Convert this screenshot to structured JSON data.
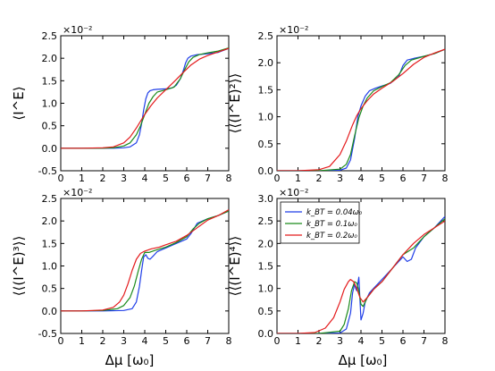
{
  "figure": {
    "xlabel": "Δμ  [ω₀]"
  },
  "chart_data": [
    {
      "type": "line",
      "ylabel": "⟨I^E⟩",
      "multiplier": "×10⁻²",
      "xlim": [
        0,
        8
      ],
      "ylim": [
        -0.5,
        2.5
      ],
      "xticks": [
        "0",
        "1",
        "2",
        "3",
        "4",
        "5",
        "6",
        "7",
        "8"
      ],
      "yticks": [
        "-0.5",
        "0.0",
        "0.5",
        "1.0",
        "1.5",
        "2.0",
        "2.5"
      ],
      "series": [
        {
          "color": "#1f3ee8",
          "x": [
            0,
            1,
            2,
            2.5,
            3,
            3.3,
            3.6,
            3.75,
            3.85,
            3.95,
            4.05,
            4.15,
            4.25,
            4.4,
            4.6,
            5.0,
            5.3,
            5.5,
            5.7,
            5.85,
            5.95,
            6.05,
            6.2,
            6.5,
            7,
            7.5,
            8
          ],
          "y": [
            0,
            0,
            0,
            0,
            0.01,
            0.03,
            0.12,
            0.3,
            0.55,
            0.85,
            1.1,
            1.23,
            1.28,
            1.3,
            1.31,
            1.32,
            1.34,
            1.4,
            1.55,
            1.75,
            1.9,
            2.0,
            2.05,
            2.08,
            2.1,
            2.13,
            2.22
          ]
        },
        {
          "color": "#1a8a1a",
          "x": [
            0,
            1,
            2,
            2.5,
            3,
            3.3,
            3.6,
            3.8,
            4.0,
            4.2,
            4.4,
            4.6,
            5.0,
            5.4,
            5.7,
            5.9,
            6.1,
            6.3,
            6.6,
            7,
            7.5,
            8
          ],
          "y": [
            0,
            0,
            0,
            0.01,
            0.05,
            0.12,
            0.3,
            0.5,
            0.75,
            1.0,
            1.15,
            1.25,
            1.3,
            1.36,
            1.55,
            1.75,
            1.92,
            2.02,
            2.08,
            2.12,
            2.16,
            2.23
          ]
        },
        {
          "color": "#e41a1c",
          "x": [
            0,
            1,
            2,
            2.5,
            3,
            3.3,
            3.6,
            3.8,
            4.0,
            4.3,
            4.6,
            5.0,
            5.4,
            5.8,
            6.2,
            6.6,
            7,
            7.5,
            8
          ],
          "y": [
            0,
            0,
            0.01,
            0.03,
            0.12,
            0.25,
            0.45,
            0.6,
            0.75,
            0.95,
            1.12,
            1.3,
            1.48,
            1.67,
            1.85,
            1.98,
            2.06,
            2.14,
            2.22
          ]
        }
      ]
    },
    {
      "type": "line",
      "ylabel": "⟨⟨(I^E)²⟩⟩",
      "multiplier": "×10⁻²",
      "xlim": [
        0,
        8
      ],
      "ylim": [
        0,
        2.5
      ],
      "xticks": [
        "0",
        "1",
        "2",
        "3",
        "4",
        "5",
        "6",
        "7",
        "8"
      ],
      "yticks": [
        "0.0",
        "0.5",
        "1.0",
        "1.5",
        "2.0",
        "2.5"
      ],
      "series": [
        {
          "color": "#1f3ee8",
          "x": [
            0,
            1,
            2,
            3,
            3.3,
            3.5,
            3.7,
            3.85,
            4.0,
            4.2,
            4.4,
            4.7,
            5.0,
            5.4,
            5.8,
            6.0,
            6.2,
            6.5,
            7,
            7.5,
            8
          ],
          "y": [
            0,
            0,
            0,
            0.01,
            0.05,
            0.2,
            0.6,
            1.0,
            1.2,
            1.38,
            1.48,
            1.53,
            1.57,
            1.62,
            1.75,
            1.95,
            2.05,
            2.08,
            2.12,
            2.17,
            2.25
          ]
        },
        {
          "color": "#1a8a1a",
          "x": [
            0,
            1,
            2,
            3,
            3.3,
            3.5,
            3.7,
            3.9,
            4.1,
            4.3,
            4.6,
            5.0,
            5.4,
            5.8,
            6.1,
            6.4,
            7,
            7.5,
            8
          ],
          "y": [
            0,
            0,
            0,
            0.03,
            0.12,
            0.3,
            0.65,
            0.98,
            1.2,
            1.35,
            1.48,
            1.56,
            1.63,
            1.78,
            1.95,
            2.05,
            2.12,
            2.17,
            2.25
          ]
        },
        {
          "color": "#e41a1c",
          "x": [
            0,
            1,
            2,
            2.5,
            3,
            3.3,
            3.6,
            3.8,
            4.0,
            4.3,
            4.6,
            5.0,
            5.5,
            6.0,
            6.5,
            7,
            7.5,
            8
          ],
          "y": [
            0,
            0,
            0.02,
            0.08,
            0.3,
            0.55,
            0.85,
            1.02,
            1.15,
            1.3,
            1.42,
            1.53,
            1.65,
            1.8,
            1.97,
            2.1,
            2.18,
            2.25
          ]
        }
      ]
    },
    {
      "type": "line",
      "ylabel": "⟨⟨(I^E)³⟩⟩",
      "multiplier": "×10⁻²",
      "xlim": [
        0,
        8
      ],
      "ylim": [
        -0.5,
        2.5
      ],
      "xticks": [
        "0",
        "1",
        "2",
        "3",
        "4",
        "5",
        "6",
        "7",
        "8"
      ],
      "yticks": [
        "-0.5",
        "0.0",
        "0.5",
        "1.0",
        "1.5",
        "2.0",
        "2.5"
      ],
      "series": [
        {
          "color": "#1f3ee8",
          "x": [
            0,
            1,
            2,
            3,
            3.4,
            3.6,
            3.75,
            3.85,
            3.95,
            4.05,
            4.15,
            4.25,
            4.4,
            4.6,
            5.0,
            5.5,
            6.0,
            6.2,
            6.5,
            7,
            7.5,
            8
          ],
          "y": [
            0,
            0,
            0,
            0.01,
            0.05,
            0.2,
            0.55,
            0.9,
            1.2,
            1.25,
            1.17,
            1.15,
            1.22,
            1.32,
            1.4,
            1.5,
            1.6,
            1.72,
            1.95,
            2.05,
            2.12,
            2.22
          ]
        },
        {
          "color": "#1a8a1a",
          "x": [
            0,
            1,
            2,
            2.7,
            3,
            3.3,
            3.5,
            3.7,
            3.85,
            4.0,
            4.2,
            4.5,
            5.0,
            5.5,
            6.0,
            6.3,
            6.6,
            7,
            7.5,
            8
          ],
          "y": [
            0,
            0,
            0.01,
            0.05,
            0.12,
            0.3,
            0.55,
            0.9,
            1.15,
            1.3,
            1.3,
            1.35,
            1.42,
            1.52,
            1.65,
            1.82,
            1.95,
            2.05,
            2.12,
            2.22
          ]
        },
        {
          "color": "#e41a1c",
          "x": [
            0,
            1,
            2,
            2.5,
            2.8,
            3.0,
            3.2,
            3.4,
            3.6,
            3.8,
            4.0,
            4.3,
            4.7,
            5.0,
            5.5,
            6.0,
            6.5,
            7,
            7.5,
            8
          ],
          "y": [
            0,
            0,
            0.02,
            0.08,
            0.2,
            0.35,
            0.6,
            0.9,
            1.15,
            1.28,
            1.33,
            1.38,
            1.42,
            1.47,
            1.55,
            1.68,
            1.85,
            2.02,
            2.12,
            2.25
          ]
        }
      ]
    },
    {
      "type": "line",
      "ylabel": "⟨⟨(I^E)⁴⟩⟩",
      "multiplier": "×10⁻²",
      "xlim": [
        0,
        8
      ],
      "ylim": [
        0,
        3.0
      ],
      "xticks": [
        "0",
        "1",
        "2",
        "3",
        "4",
        "5",
        "6",
        "7",
        "8"
      ],
      "yticks": [
        "0.0",
        "0.5",
        "1.0",
        "1.5",
        "2.0",
        "2.5",
        "3.0"
      ],
      "legend": {
        "placement": "top-left",
        "entries": [
          "k_BT = 0.04ω₀",
          "k_BT = 0.1ω₀",
          "k_BT = 0.2ω₀"
        ]
      },
      "series": [
        {
          "color": "#1f3ee8",
          "x": [
            0,
            1,
            2,
            3,
            3.3,
            3.5,
            3.6,
            3.7,
            3.75,
            3.8,
            3.85,
            3.9,
            4.0,
            4.1,
            4.2,
            4.4,
            4.7,
            5.0,
            5.5,
            6.0,
            6.2,
            6.4,
            6.6,
            7,
            7.5,
            8
          ],
          "y": [
            0,
            0,
            0,
            0.01,
            0.1,
            0.45,
            0.9,
            1.1,
            1.0,
            0.95,
            1.1,
            1.25,
            0.3,
            0.45,
            0.7,
            0.9,
            1.05,
            1.2,
            1.45,
            1.7,
            1.6,
            1.65,
            1.9,
            2.15,
            2.35,
            2.6
          ]
        },
        {
          "color": "#1a8a1a",
          "x": [
            0,
            1,
            2,
            3,
            3.2,
            3.4,
            3.55,
            3.7,
            3.8,
            3.9,
            4.0,
            4.1,
            4.3,
            4.6,
            5.0,
            5.5,
            6.0,
            6.5,
            7,
            7.5,
            8
          ],
          "y": [
            0,
            0,
            0,
            0.05,
            0.2,
            0.55,
            0.95,
            1.15,
            1.12,
            0.95,
            0.65,
            0.6,
            0.8,
            0.98,
            1.15,
            1.45,
            1.75,
            1.9,
            2.15,
            2.35,
            2.55
          ]
        },
        {
          "color": "#e41a1c",
          "x": [
            0,
            1,
            1.8,
            2.3,
            2.7,
            3.0,
            3.2,
            3.4,
            3.5,
            3.65,
            3.8,
            3.95,
            4.1,
            4.3,
            4.6,
            5.0,
            5.5,
            6.0,
            6.5,
            7,
            7.5,
            8
          ],
          "y": [
            0,
            0,
            0.02,
            0.12,
            0.35,
            0.7,
            0.98,
            1.15,
            1.2,
            1.15,
            1.0,
            0.8,
            0.7,
            0.8,
            0.98,
            1.15,
            1.45,
            1.75,
            2.0,
            2.2,
            2.35,
            2.5
          ]
        }
      ]
    }
  ]
}
